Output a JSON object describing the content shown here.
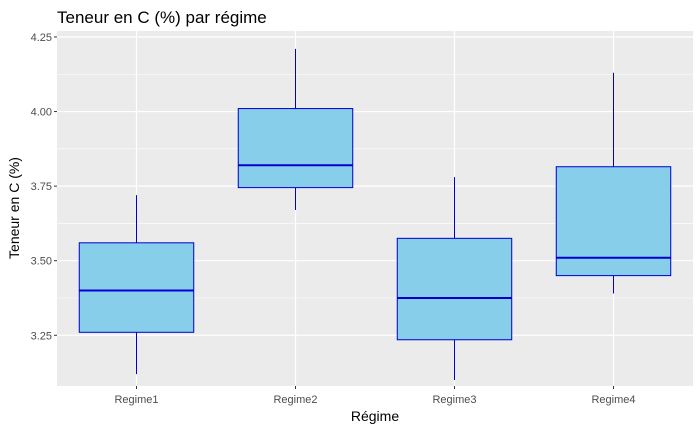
{
  "chart_data": {
    "type": "boxplot",
    "title": "Teneur en C (%) par régime",
    "xlabel": "Régime",
    "ylabel": "Teneur en C (%)",
    "ylim": [
      3.08,
      4.27
    ],
    "yticks": [
      3.25,
      3.5,
      3.75,
      4.0,
      4.25
    ],
    "ytick_labels": [
      "3.25",
      "3.50",
      "3.75",
      "4.00",
      "4.25"
    ],
    "grid": true,
    "categories": [
      "Regime1",
      "Regime2",
      "Regime3",
      "Regime4"
    ],
    "boxes": [
      {
        "category": "Regime1",
        "min": 3.12,
        "q1": 3.26,
        "median": 3.4,
        "q3": 3.56,
        "max": 3.72
      },
      {
        "category": "Regime2",
        "min": 3.67,
        "q1": 3.745,
        "median": 3.82,
        "q3": 4.01,
        "max": 4.21
      },
      {
        "category": "Regime3",
        "min": 3.1,
        "q1": 3.235,
        "median": 3.375,
        "q3": 3.575,
        "max": 3.78
      },
      {
        "category": "Regime4",
        "min": 3.39,
        "q1": 3.45,
        "median": 3.51,
        "q3": 3.815,
        "max": 4.13
      }
    ],
    "colors": {
      "box_fill": "#87CEEB",
      "box_stroke": "#0000CD",
      "panel_bg": "#EBEBEB",
      "grid_major": "#FFFFFF"
    }
  }
}
